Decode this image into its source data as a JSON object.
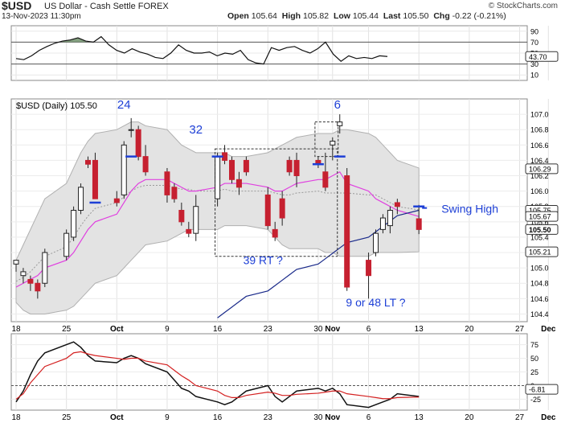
{
  "header": {
    "symbol": "$USD",
    "name": "US Dollar - Cash Settle",
    "exchange": "FOREX",
    "date": "13-Nov-2023 11:30pm",
    "brand": "© StockCharts.com",
    "quote": {
      "open_label": "Open",
      "open": "105.64",
      "high_label": "High",
      "high": "105.82",
      "low_label": "Low",
      "low": "105.44",
      "last_label": "Last",
      "last": "105.50",
      "chg_label": "Chg",
      "chg": "-0.22 (-0.21%)"
    }
  },
  "chart_data": [
    {
      "type": "line",
      "panel": "rsi",
      "series": [
        {
          "values": [
            40,
            38,
            45,
            55,
            62,
            68,
            72,
            74,
            78,
            72,
            70,
            80,
            65,
            55,
            50,
            58,
            52,
            48,
            42,
            40,
            50,
            65,
            55,
            50,
            50,
            52,
            45,
            50,
            48,
            55,
            38,
            32,
            30,
            60,
            55,
            60,
            62,
            55,
            50,
            58,
            70,
            48,
            35,
            45,
            40,
            42,
            40,
            45,
            43.7
          ]
        }
      ],
      "yticks": [
        "90",
        "70",
        "50",
        "30",
        "10"
      ],
      "ylim": [
        0,
        100
      ],
      "last_label": "43.70"
    },
    {
      "type": "candlestick",
      "panel": "price",
      "title": "$USD (Daily) 105.50",
      "x": [
        "Sep 18",
        "Sep 19",
        "Sep 20",
        "Sep 21",
        "Sep 22",
        "Sep 25",
        "Sep 26",
        "Sep 27",
        "Sep 28",
        "Sep 29",
        "Oct 2",
        "Oct 3",
        "Oct 4",
        "Oct 5",
        "Oct 6",
        "Oct 9",
        "Oct 10",
        "Oct 11",
        "Oct 12",
        "Oct 13",
        "Oct 16",
        "Oct 17",
        "Oct 18",
        "Oct 19",
        "Oct 20",
        "Oct 23",
        "Oct 24",
        "Oct 25",
        "Oct 26",
        "Oct 27",
        "Oct 30",
        "Oct 31",
        "Nov 1",
        "Nov 2",
        "Nov 3",
        "Nov 6",
        "Nov 7",
        "Nov 8",
        "Nov 9",
        "Nov 10",
        "Nov 13"
      ],
      "ohlc": [
        [
          105.05,
          105.1,
          104.95,
          105.1
        ],
        [
          104.9,
          105.0,
          104.8,
          104.95
        ],
        [
          104.85,
          104.9,
          104.7,
          104.8
        ],
        [
          104.8,
          104.85,
          104.6,
          104.7
        ],
        [
          104.8,
          105.25,
          104.75,
          105.2
        ],
        [
          105.15,
          105.5,
          105.1,
          105.45
        ],
        [
          105.4,
          105.8,
          105.35,
          105.75
        ],
        [
          105.75,
          106.1,
          105.7,
          106.05
        ],
        [
          106.4,
          106.45,
          106.3,
          106.35
        ],
        [
          106.4,
          106.5,
          105.9,
          105.9
        ],
        [
          105.9,
          106.0,
          105.8,
          105.85
        ],
        [
          105.95,
          106.65,
          105.9,
          106.6
        ],
        [
          106.8,
          106.95,
          106.7,
          106.8
        ],
        [
          106.8,
          106.85,
          106.4,
          106.45
        ],
        [
          106.45,
          106.6,
          106.2,
          106.25
        ],
        [
          106.25,
          106.3,
          105.85,
          105.95
        ],
        [
          106.05,
          106.1,
          105.85,
          105.9
        ],
        [
          105.75,
          105.85,
          105.55,
          105.6
        ],
        [
          105.5,
          105.6,
          105.4,
          105.45
        ],
        [
          105.45,
          105.95,
          105.35,
          105.8
        ],
        [
          105.9,
          106.5,
          105.8,
          106.45
        ],
        [
          106.5,
          106.6,
          106.35,
          106.4
        ],
        [
          106.4,
          106.45,
          106.1,
          106.15
        ],
        [
          106.15,
          106.25,
          105.95,
          106.05
        ],
        [
          106.4,
          106.45,
          106.2,
          106.25
        ],
        [
          105.95,
          106.05,
          105.5,
          105.55
        ],
        [
          105.5,
          105.6,
          105.35,
          105.4
        ],
        [
          105.9,
          106.0,
          105.55,
          105.65
        ],
        [
          106.4,
          106.45,
          106.2,
          106.25
        ],
        [
          106.4,
          106.5,
          106.05,
          106.2
        ],
        [
          106.4,
          106.45,
          106.3,
          106.35
        ],
        [
          106.25,
          106.5,
          106.0,
          106.05
        ],
        [
          106.6,
          106.7,
          106.4,
          106.65
        ],
        [
          106.85,
          107.0,
          106.75,
          106.9
        ],
        [
          106.2,
          106.3,
          104.7,
          104.75
        ],
        [
          105.1,
          105.2,
          104.6,
          104.9
        ],
        [
          105.2,
          105.5,
          105.15,
          105.45
        ],
        [
          105.5,
          105.7,
          105.45,
          105.65
        ],
        [
          105.55,
          105.8,
          105.45,
          105.75
        ],
        [
          105.85,
          105.9,
          105.7,
          105.8
        ],
        [
          105.64,
          105.82,
          105.44,
          105.5
        ]
      ],
      "yticks": [
        "107.0",
        "106.8",
        "106.6",
        "106.4",
        "106.2",
        "106.0",
        "105.8",
        "105.6",
        "105.4",
        "105.2",
        "105.0",
        "104.8",
        "104.6",
        "104.4"
      ],
      "ylim": [
        104.3,
        107.2
      ],
      "right_labels": [
        "106.29",
        "105.75",
        "105.67",
        "105.50",
        "105.21"
      ],
      "annotations": [
        "24",
        "32",
        "6",
        "39 RT  ?",
        "9 or 48 LT ?",
        "Swing High"
      ],
      "xticks": [
        "18",
        "25",
        "Oct",
        "9",
        "16",
        "23",
        "30",
        "Nov",
        "6",
        "13",
        "20",
        "27",
        "Dec"
      ]
    },
    {
      "type": "line",
      "panel": "macd",
      "series": [
        {
          "values": [
            -30,
            -10,
            20,
            45,
            60,
            75,
            80,
            70,
            55,
            45,
            42,
            50,
            55,
            50,
            40,
            25,
            10,
            -5,
            -10,
            -20,
            -30,
            -35,
            -30,
            -20,
            -10,
            0,
            -20,
            -30,
            -20,
            -10,
            -5,
            -10,
            -5,
            -15,
            -35,
            -40,
            -35,
            -30,
            -25,
            -15,
            -20
          ]
        },
        {
          "values": [
            -25,
            -15,
            5,
            20,
            35,
            50,
            60,
            62,
            58,
            55,
            50,
            48,
            50,
            50,
            45,
            38,
            28,
            18,
            10,
            0,
            -10,
            -18,
            -22,
            -22,
            -18,
            -12,
            -14,
            -18,
            -18,
            -16,
            -14,
            -12,
            -10,
            -10,
            -15,
            -20,
            -22,
            -24,
            -24,
            -22,
            -21
          ]
        }
      ],
      "yticks": [
        "75",
        "50",
        "25",
        "0",
        "-25"
      ],
      "ylim": [
        -45,
        95
      ],
      "last_label": "-6.81"
    }
  ]
}
